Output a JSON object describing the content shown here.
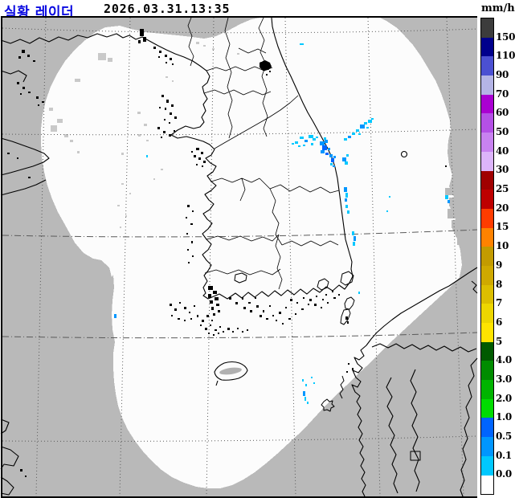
{
  "header": {
    "title": "실황 레이더",
    "timestamp": "2026.03.31.13:35",
    "unit_label": "mm/h"
  },
  "colors": {
    "title_blue": "#0a0ae1",
    "map_background": "#b9b9b9",
    "radar_coverage": "#fcfcfc",
    "coastline": "#000000",
    "graticule": "#5a5a5a",
    "sea_clutter": "#c9c9c9"
  },
  "legend": {
    "unit": "mm/h",
    "segments": [
      {
        "color": "#3c3c3c",
        "label": "150"
      },
      {
        "color": "#00008c",
        "label": "110"
      },
      {
        "color": "#4b50d2",
        "label": "90"
      },
      {
        "color": "#b4b4e6",
        "label": "70"
      },
      {
        "color": "#aa00d2",
        "label": "60"
      },
      {
        "color": "#b450e6",
        "label": "50"
      },
      {
        "color": "#c882f0",
        "label": "40"
      },
      {
        "color": "#dcb4fa",
        "label": "30"
      },
      {
        "color": "#a00000",
        "label": "25"
      },
      {
        "color": "#be0000",
        "label": "20"
      },
      {
        "color": "#ff3c00",
        "label": "15"
      },
      {
        "color": "#ff8200",
        "label": "10"
      },
      {
        "color": "#c39b00",
        "label": "9"
      },
      {
        "color": "#cfa900",
        "label": "8"
      },
      {
        "color": "#dcbe00",
        "label": "7"
      },
      {
        "color": "#edd600",
        "label": "6"
      },
      {
        "color": "#ffe400",
        "label": "5"
      },
      {
        "color": "#005a00",
        "label": "4.0"
      },
      {
        "color": "#008c00",
        "label": "3.0"
      },
      {
        "color": "#00b400",
        "label": "2.0"
      },
      {
        "color": "#00dc00",
        "label": "1.0"
      },
      {
        "color": "#0064ff",
        "label": "0.5"
      },
      {
        "color": "#0096ff",
        "label": "0.1"
      },
      {
        "color": "#00c8ff",
        "label": "0.0"
      },
      {
        "color": "#ffffff",
        "label": ""
      }
    ]
  },
  "map": {
    "echo_colors": {
      "L1": "#00c8ff",
      "L2": "#0096ff",
      "L3": "#0064ff"
    },
    "echoes": [
      [
        372,
        54,
        5,
        2,
        "L1"
      ],
      [
        366,
        176,
        4,
        3,
        "L1"
      ],
      [
        372,
        170,
        5,
        3,
        "L1"
      ],
      [
        378,
        174,
        4,
        3,
        "L2"
      ],
      [
        383,
        168,
        6,
        4,
        "L1"
      ],
      [
        388,
        172,
        4,
        3,
        "L1"
      ],
      [
        370,
        181,
        3,
        2,
        "L1"
      ],
      [
        376,
        180,
        3,
        2,
        "L1"
      ],
      [
        362,
        178,
        3,
        2,
        "L1"
      ],
      [
        386,
        178,
        3,
        3,
        "L1"
      ],
      [
        392,
        170,
        3,
        2,
        "L1"
      ],
      [
        397,
        176,
        6,
        5,
        "L2"
      ],
      [
        400,
        181,
        6,
        6,
        "L3"
      ],
      [
        403,
        174,
        4,
        4,
        "L2"
      ],
      [
        398,
        187,
        5,
        4,
        "L2"
      ],
      [
        404,
        190,
        4,
        3,
        "L3"
      ],
      [
        407,
        184,
        3,
        3,
        "L2"
      ],
      [
        402,
        171,
        3,
        3,
        "L1"
      ],
      [
        409,
        192,
        4,
        4,
        "L2"
      ],
      [
        411,
        197,
        4,
        5,
        "L3"
      ],
      [
        414,
        194,
        3,
        3,
        "L2"
      ],
      [
        410,
        203,
        3,
        3,
        "L1"
      ],
      [
        413,
        206,
        3,
        2,
        "L2"
      ],
      [
        427,
        172,
        4,
        3,
        "L1"
      ],
      [
        432,
        169,
        4,
        3,
        "L2"
      ],
      [
        437,
        165,
        4,
        3,
        "L1"
      ],
      [
        442,
        161,
        4,
        3,
        "L1"
      ],
      [
        447,
        155,
        6,
        5,
        "L2"
      ],
      [
        452,
        152,
        4,
        3,
        "L1"
      ],
      [
        457,
        149,
        5,
        4,
        "L1"
      ],
      [
        461,
        147,
        3,
        2,
        "L1"
      ],
      [
        445,
        166,
        3,
        2,
        "L1"
      ],
      [
        455,
        158,
        3,
        2,
        "L1"
      ],
      [
        425,
        196,
        5,
        5,
        "L2"
      ],
      [
        428,
        201,
        4,
        4,
        "L1"
      ],
      [
        430,
        192,
        3,
        3,
        "L1"
      ],
      [
        427,
        233,
        4,
        6,
        "L2"
      ],
      [
        429,
        240,
        3,
        6,
        "L1"
      ],
      [
        428,
        247,
        3,
        4,
        "L2"
      ],
      [
        429,
        255,
        3,
        4,
        "L1"
      ],
      [
        431,
        262,
        3,
        4,
        "L1"
      ],
      [
        437,
        288,
        3,
        5,
        "L1"
      ],
      [
        439,
        294,
        3,
        6,
        "L2"
      ],
      [
        438,
        301,
        3,
        5,
        "L1"
      ],
      [
        483,
        244,
        2,
        2,
        "L1"
      ],
      [
        480,
        262,
        2,
        2,
        "L1"
      ],
      [
        553,
        243,
        4,
        5,
        "L1"
      ],
      [
        556,
        249,
        3,
        4,
        "L2"
      ],
      [
        375,
        472,
        2,
        3,
        "L1"
      ],
      [
        379,
        478,
        2,
        3,
        "L1"
      ],
      [
        376,
        487,
        3,
        6,
        "L2"
      ],
      [
        378,
        494,
        2,
        5,
        "L1"
      ],
      [
        381,
        500,
        2,
        3,
        "L1"
      ],
      [
        386,
        469,
        2,
        2,
        "L1"
      ],
      [
        389,
        476,
        2,
        2,
        "L1"
      ],
      [
        445,
        363,
        2,
        3,
        "L1"
      ],
      [
        141,
        391,
        3,
        5,
        "L2"
      ],
      [
        181,
        193,
        2,
        3,
        "L1"
      ]
    ],
    "sea_clutter": [
      [
        121,
        66,
        10,
        9
      ],
      [
        133,
        72,
        6,
        5
      ],
      [
        92,
        98,
        7,
        4
      ],
      [
        60,
        134,
        5,
        4
      ],
      [
        70,
        148,
        7,
        5
      ],
      [
        62,
        156,
        8,
        8
      ],
      [
        79,
        167,
        5,
        4
      ],
      [
        86,
        174,
        4,
        3
      ],
      [
        170,
        139,
        4,
        3
      ],
      [
        178,
        154,
        4,
        3
      ],
      [
        171,
        167,
        3,
        3
      ],
      [
        181,
        174,
        3,
        2
      ],
      [
        150,
        190,
        3,
        3
      ],
      [
        95,
        188,
        3,
        3
      ],
      [
        243,
        52,
        4,
        3
      ],
      [
        252,
        56,
        3,
        2
      ],
      [
        263,
        60,
        3,
        2
      ],
      [
        205,
        95,
        3,
        2
      ],
      [
        213,
        100,
        2,
        2
      ],
      [
        294,
        66,
        3,
        2
      ],
      [
        150,
        228,
        3,
        2
      ],
      [
        160,
        240,
        2,
        2
      ],
      [
        145,
        255,
        3,
        2
      ],
      [
        155,
        268,
        2,
        2
      ],
      [
        148,
        282,
        2,
        2
      ],
      [
        199,
        210,
        3,
        2
      ],
      [
        190,
        222,
        2,
        2
      ]
    ],
    "coverage_notches": [
      [
        553,
        234,
        12,
        9
      ],
      [
        558,
        246,
        14,
        11
      ],
      [
        556,
        260,
        13,
        12
      ],
      [
        561,
        274,
        11,
        10
      ],
      [
        566,
        286,
        9,
        9
      ],
      [
        568,
        298,
        7,
        7
      ]
    ]
  }
}
